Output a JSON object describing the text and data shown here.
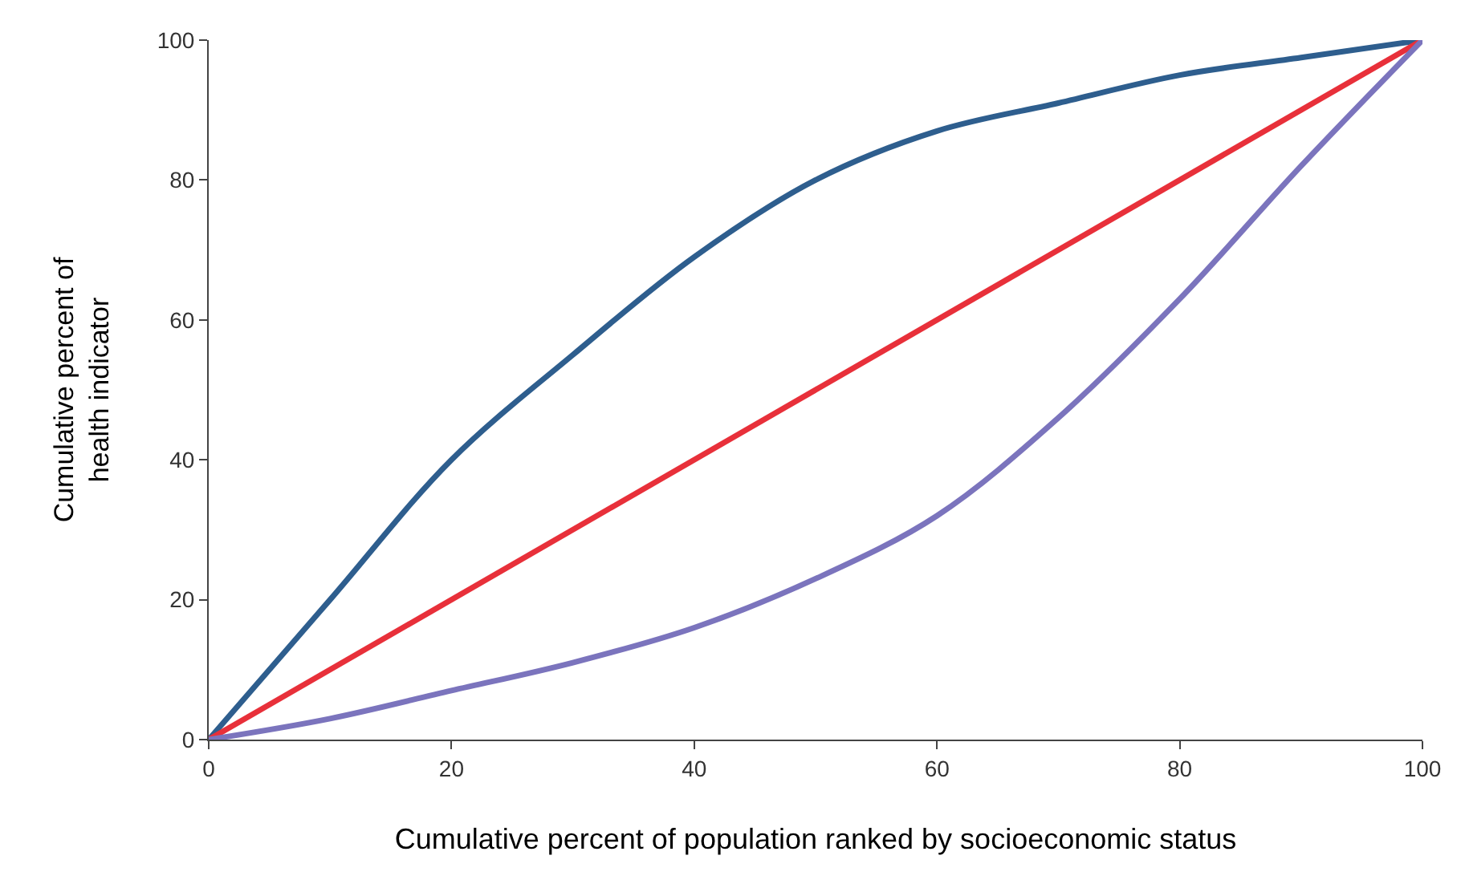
{
  "chart_data": {
    "type": "line",
    "xlabel": "Cumulative percent of population ranked by socioeconomic status",
    "ylabel": "Cumulative percent of\nhealth indicator",
    "xlim": [
      0,
      100
    ],
    "ylim": [
      0,
      100
    ],
    "xticks": [
      0,
      20,
      40,
      60,
      80,
      100
    ],
    "yticks": [
      0,
      20,
      40,
      60,
      80,
      100
    ],
    "marker": "none",
    "line_style": "solid",
    "series": [
      {
        "color": "#2e5e8e",
        "x": [
          0,
          10,
          20,
          30,
          40,
          50,
          60,
          70,
          80,
          90,
          100
        ],
        "values": [
          0,
          20,
          40,
          55,
          69,
          80,
          87,
          91,
          95,
          97.5,
          100
        ]
      },
      {
        "color": "#e8303a",
        "x": [
          0,
          100
        ],
        "values": [
          0,
          100
        ]
      },
      {
        "color": "#7b74bd",
        "x": [
          0,
          10,
          20,
          30,
          40,
          50,
          60,
          70,
          80,
          90,
          100
        ],
        "values": [
          0,
          3,
          7,
          11,
          16,
          23,
          32,
          46,
          63,
          82,
          100
        ]
      }
    ]
  }
}
